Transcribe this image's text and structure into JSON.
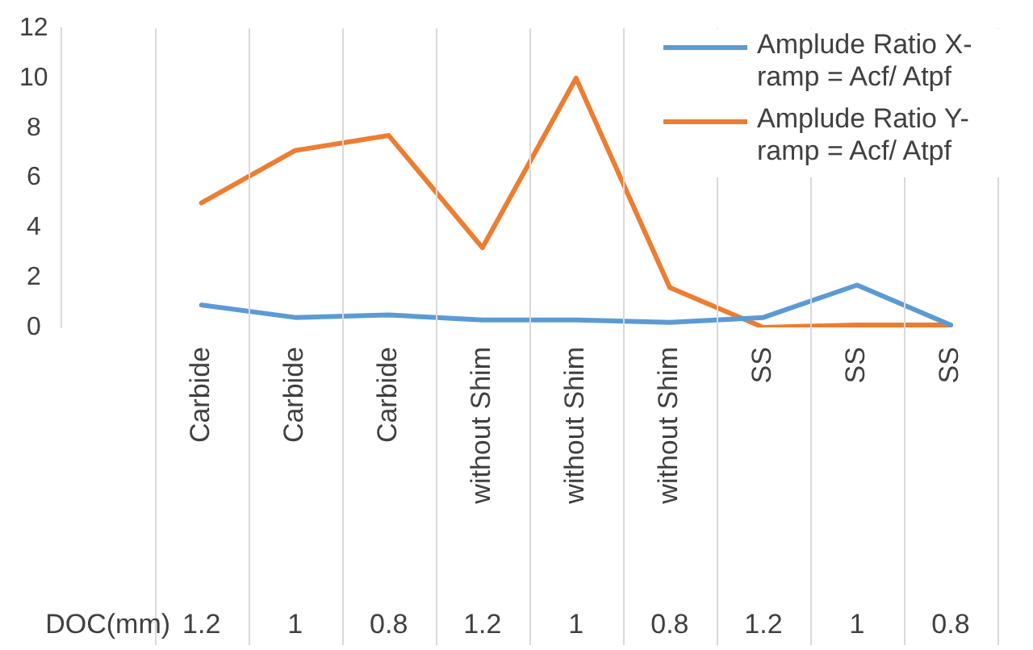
{
  "chart_data": {
    "type": "line",
    "categories": [
      null,
      "Carbide",
      "Carbide",
      "Carbide",
      "without Shim",
      "without Shim",
      "without Shim",
      "SS",
      "SS",
      "SS"
    ],
    "annotations": [
      "DOC(mm)",
      "1.2",
      "1",
      "0.8",
      "1.2",
      "1",
      "0.8",
      "1.2",
      "1",
      "0.8"
    ],
    "series": [
      {
        "name": "Amplude Ratio X-ramp =  Acf/ Atpf",
        "color": "#5b9bd5",
        "values": [
          null,
          0.9,
          0.4,
          0.5,
          0.3,
          0.3,
          0.2,
          0.4,
          1.7,
          0.1
        ]
      },
      {
        "name": "Amplude Ratio Y-ramp =  Acf/ Atpf",
        "color": "#ed7d31",
        "values": [
          null,
          5.0,
          7.1,
          7.7,
          3.2,
          10.0,
          1.6,
          0.0,
          0.1,
          0.1
        ]
      }
    ],
    "ylim": [
      0,
      12
    ],
    "yticks": [
      0,
      2,
      4,
      6,
      8,
      10,
      12
    ],
    "grid": "x",
    "legend": "top right",
    "marker": "none",
    "line_style": "solid"
  }
}
